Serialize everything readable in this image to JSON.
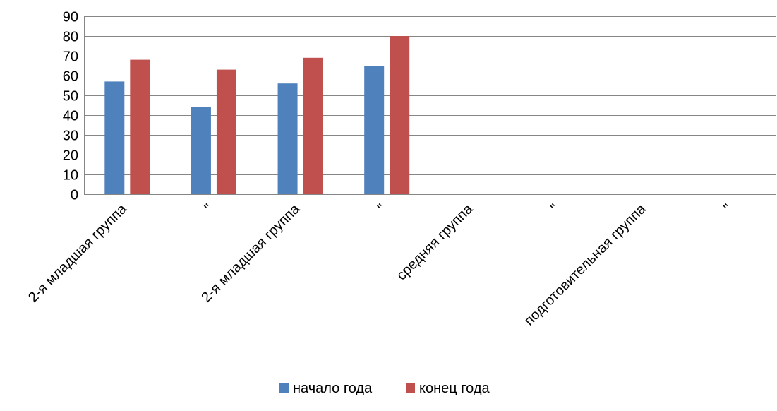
{
  "chart_data": {
    "type": "bar",
    "categories": [
      "2-я младшая группа",
      "\"",
      "2-я младшая группа",
      "\"",
      "средняя группа",
      "\"",
      "подготовительная группа",
      "\""
    ],
    "series": [
      {
        "name": "начало года",
        "color": "#4F81BD",
        "values": [
          57,
          44,
          56,
          65,
          0,
          0,
          0,
          0
        ]
      },
      {
        "name": "конец года",
        "color": "#C0504D",
        "values": [
          68,
          63,
          69,
          80,
          0,
          0,
          0,
          0
        ]
      }
    ],
    "yticks": [
      "0",
      "10",
      "20",
      "30",
      "40",
      "50",
      "60",
      "70",
      "80",
      "90"
    ],
    "ylim": [
      0,
      90
    ],
    "grid": true,
    "legend_position": "bottom",
    "gridline_color": "#868686"
  }
}
